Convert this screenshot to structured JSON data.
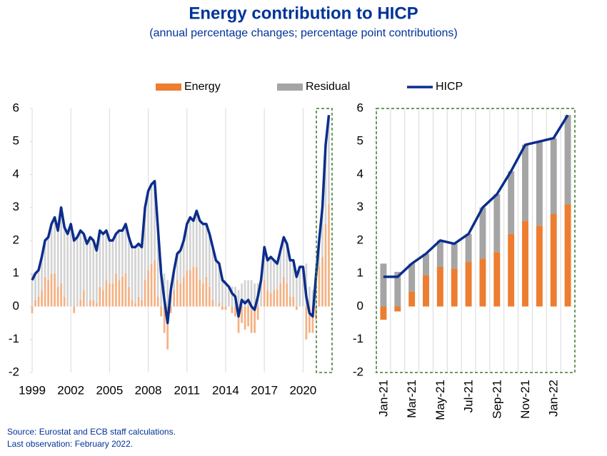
{
  "title": "Energy contribution to HICP",
  "subtitle": "(annual percentage changes; percentage point contributions)",
  "source": "Source: Eurostat and ECB staff calculations.",
  "last_observation": "Last observation: February 2022.",
  "chart_data": [
    {
      "type": "bar",
      "x": [
        1999,
        1999.25,
        1999.5,
        1999.75,
        2000,
        2000.25,
        2000.5,
        2000.75,
        2001,
        2001.25,
        2001.5,
        2001.75,
        2002,
        2002.25,
        2002.5,
        2002.75,
        2003,
        2003.25,
        2003.5,
        2003.75,
        2004,
        2004.25,
        2004.5,
        2004.75,
        2005,
        2005.25,
        2005.5,
        2005.75,
        2006,
        2006.25,
        2006.5,
        2006.75,
        2007,
        2007.25,
        2007.5,
        2007.75,
        2008,
        2008.25,
        2008.5,
        2008.75,
        2009,
        2009.25,
        2009.5,
        2009.75,
        2010,
        2010.25,
        2010.5,
        2010.75,
        2011,
        2011.25,
        2011.5,
        2011.75,
        2012,
        2012.25,
        2012.5,
        2012.75,
        2013,
        2013.25,
        2013.5,
        2013.75,
        2014,
        2014.25,
        2014.5,
        2014.75,
        2015,
        2015.25,
        2015.5,
        2015.75,
        2016,
        2016.25,
        2016.5,
        2016.75,
        2017,
        2017.25,
        2017.5,
        2017.75,
        2018,
        2018.25,
        2018.5,
        2018.75,
        2019,
        2019.25,
        2019.5,
        2019.75,
        2020,
        2020.25,
        2020.5,
        2020.75,
        2021,
        2021.25,
        2021.5,
        2021.75,
        2022
      ],
      "series": [
        {
          "name": "Energy",
          "color": "#f4b183",
          "values": [
            -0.2,
            0.2,
            0.3,
            0.5,
            0.9,
            0.8,
            1.0,
            1.0,
            0.6,
            0.7,
            0.3,
            0.0,
            0.0,
            -0.2,
            0.0,
            0.2,
            0.5,
            0.0,
            0.2,
            0.2,
            0.1,
            0.6,
            0.5,
            0.8,
            0.7,
            0.7,
            1.0,
            0.8,
            0.9,
            1.0,
            0.6,
            0.2,
            0.1,
            0.3,
            0.2,
            0.8,
            1.1,
            1.3,
            1.4,
            0.3,
            -0.3,
            -0.8,
            -1.3,
            -0.2,
            0.5,
            0.8,
            0.7,
            0.9,
            1.1,
            1.1,
            1.2,
            1.2,
            0.8,
            0.7,
            0.9,
            0.6,
            0.2,
            0.0,
            0.1,
            -0.1,
            -0.1,
            0.0,
            -0.2,
            -0.3,
            -0.8,
            -0.5,
            -0.7,
            -0.6,
            -0.8,
            -0.8,
            -0.4,
            0.0,
            0.8,
            0.5,
            0.4,
            0.5,
            0.5,
            0.7,
            0.9,
            0.7,
            0.3,
            0.3,
            -0.1,
            0.0,
            0.0,
            -1.0,
            -0.8,
            -0.8,
            -0.4,
            1.2,
            1.5,
            2.5,
            3.1
          ]
        },
        {
          "name": "Residual",
          "color": "#d3d3d3",
          "values": [
            1.0,
            0.8,
            0.8,
            1.0,
            1.1,
            1.3,
            1.5,
            1.7,
            1.7,
            2.3,
            2.1,
            2.2,
            2.5,
            2.2,
            2.1,
            2.1,
            1.7,
            1.9,
            1.9,
            1.8,
            1.6,
            1.7,
            1.7,
            1.5,
            1.3,
            1.3,
            1.2,
            1.5,
            1.4,
            1.5,
            1.5,
            1.6,
            1.7,
            1.6,
            1.6,
            2.2,
            2.4,
            2.4,
            2.4,
            2.1,
            1.3,
            1.0,
            0.8,
            0.7,
            0.6,
            0.8,
            1.0,
            1.1,
            1.4,
            1.6,
            1.4,
            1.7,
            1.8,
            1.8,
            1.6,
            1.6,
            1.6,
            1.4,
            1.2,
            0.9,
            0.8,
            0.6,
            0.6,
            0.6,
            0.5,
            0.7,
            0.8,
            0.8,
            0.8,
            0.7,
            0.7,
            0.8,
            1.0,
            0.9,
            1.1,
            0.9,
            0.8,
            1.0,
            1.2,
            1.2,
            1.1,
            1.1,
            1.0,
            1.2,
            1.2,
            1.3,
            0.6,
            0.5,
            1.3,
            0.8,
            1.5,
            2.4,
            2.7
          ]
        },
        {
          "name": "HICP",
          "color": "#0b2d8c",
          "line": true,
          "values": [
            0.8,
            1.0,
            1.1,
            1.5,
            2.0,
            2.1,
            2.5,
            2.7,
            2.3,
            3.0,
            2.4,
            2.2,
            2.5,
            2.0,
            2.1,
            2.3,
            2.2,
            1.9,
            2.1,
            2.0,
            1.7,
            2.3,
            2.2,
            2.3,
            2.0,
            2.0,
            2.2,
            2.3,
            2.3,
            2.5,
            2.1,
            1.8,
            1.8,
            1.9,
            1.8,
            3.0,
            3.5,
            3.7,
            3.8,
            2.4,
            1.0,
            0.2,
            -0.5,
            0.5,
            1.1,
            1.6,
            1.7,
            2.0,
            2.5,
            2.7,
            2.6,
            2.9,
            2.6,
            2.5,
            2.5,
            2.2,
            1.8,
            1.4,
            1.3,
            0.8,
            0.7,
            0.6,
            0.4,
            0.3,
            -0.3,
            0.2,
            0.1,
            0.2,
            0.0,
            -0.1,
            0.3,
            0.8,
            1.8,
            1.4,
            1.5,
            1.4,
            1.3,
            1.7,
            2.1,
            1.9,
            1.4,
            1.4,
            0.9,
            1.2,
            1.2,
            0.3,
            -0.2,
            -0.3,
            0.9,
            2.0,
            3.0,
            4.9,
            5.8
          ]
        }
      ],
      "xlim": [
        1999,
        2022.25
      ],
      "xticks": [
        1999,
        2002,
        2005,
        2008,
        2011,
        2014,
        2017,
        2020
      ],
      "ylim": [
        -2,
        6
      ],
      "yticks": [
        -2,
        -1,
        0,
        1,
        2,
        3,
        4,
        5,
        6
      ],
      "grid": true
    },
    {
      "type": "bar",
      "categories": [
        "Jan-21",
        null,
        "Mar-21",
        null,
        "May-21",
        null,
        "Jul-21",
        null,
        "Sep-21",
        null,
        "Nov-21",
        null,
        "Jan-22",
        null
      ],
      "series": [
        {
          "name": "Energy",
          "color": "#ed7d31",
          "values": [
            -0.4,
            -0.15,
            0.45,
            0.95,
            1.2,
            1.15,
            1.35,
            1.45,
            1.65,
            2.2,
            2.6,
            2.45,
            2.8,
            3.1
          ]
        },
        {
          "name": "Residual",
          "color": "#a5a5a5",
          "values": [
            1.3,
            1.05,
            0.85,
            0.65,
            0.8,
            0.75,
            0.85,
            1.55,
            1.75,
            1.9,
            2.3,
            2.55,
            2.3,
            2.7
          ]
        },
        {
          "name": "HICP",
          "color": "#0b2d8c",
          "line": true,
          "values": [
            0.9,
            0.9,
            1.3,
            1.6,
            2.0,
            1.9,
            2.2,
            3.0,
            3.4,
            4.1,
            4.9,
            5.0,
            5.1,
            5.8
          ]
        }
      ],
      "ylim": [
        -2,
        6
      ],
      "yticks": [
        -2,
        -1,
        0,
        1,
        2,
        3,
        4,
        5,
        6
      ],
      "grid": true
    }
  ]
}
